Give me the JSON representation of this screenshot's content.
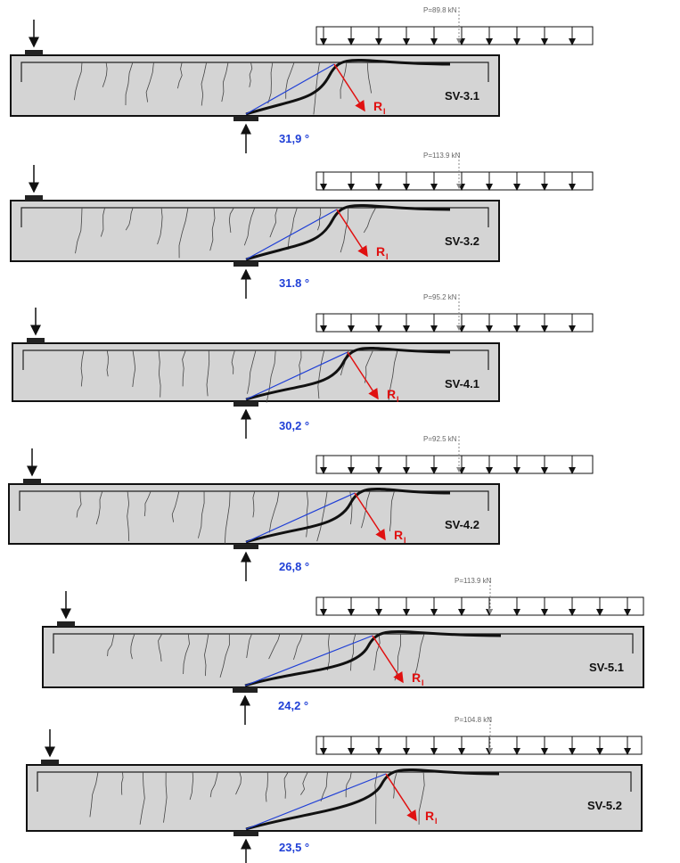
{
  "beams": [
    {
      "load": "P=89.8 kN",
      "name": "SV-3.1",
      "angle": "31,9 °",
      "force": "R",
      "force_sub": "I"
    },
    {
      "load": "P=113.9 kN",
      "name": "SV-3.2",
      "angle": "31.8 °",
      "force": "R",
      "force_sub": "I"
    },
    {
      "load": "P=95.2 kN",
      "name": "SV-4.1",
      "angle": "30,2 °",
      "force": "R",
      "force_sub": "I"
    },
    {
      "load": "P=92.5 kN",
      "name": "SV-4.2",
      "angle": "26,8 °",
      "force": "R",
      "force_sub": "I"
    },
    {
      "load": "P=113.9 kN",
      "name": "SV-5.1",
      "angle": "24,2 °",
      "force": "R",
      "force_sub": "I"
    },
    {
      "load": "P=104.8 kN",
      "name": "SV-5.2",
      "angle": "23,5 °",
      "force": "R",
      "force_sub": "I"
    }
  ]
}
